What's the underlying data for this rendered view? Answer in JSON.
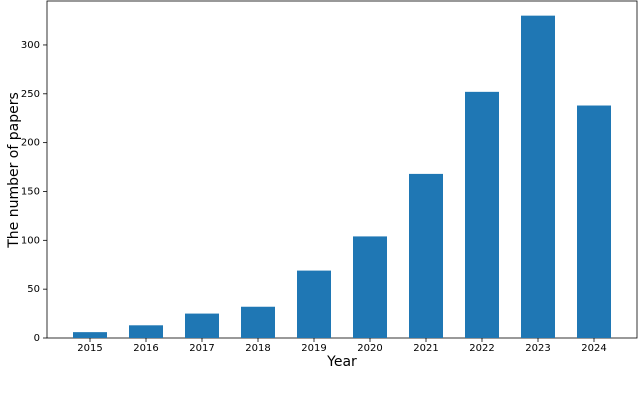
{
  "chart_data": {
    "type": "bar",
    "x_label": "Year",
    "y_label": "The number of papers",
    "categories": [
      "2015",
      "2016",
      "2017",
      "2018",
      "2019",
      "2020",
      "2021",
      "2022",
      "2023",
      "2024"
    ],
    "values": [
      6,
      13,
      25,
      32,
      69,
      104,
      168,
      252,
      330,
      238
    ],
    "color": "#1f77b4",
    "ylim": [
      0,
      345
    ],
    "yticks": [
      0,
      50,
      100,
      150,
      200,
      250,
      300
    ]
  }
}
